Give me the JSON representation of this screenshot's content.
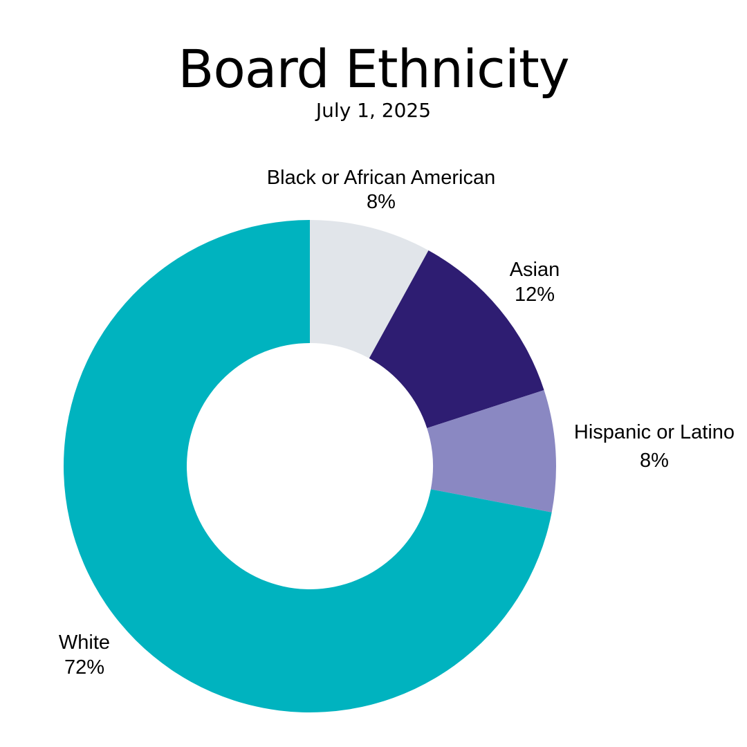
{
  "title": "Board Ethnicity",
  "subtitle": "July 1, 2025",
  "chart_data": {
    "type": "pie",
    "title": "Board Ethnicity",
    "subtitle": "July 1, 2025",
    "donut": true,
    "start_angle": "top",
    "direction": "clockwise",
    "slices": [
      {
        "label": "Black or African American",
        "value": 8,
        "display": "8%",
        "color": "#e1e5ea"
      },
      {
        "label": "Asian",
        "value": 12,
        "display": "12%",
        "color": "#2e1d72"
      },
      {
        "label": "Hispanic or Latino",
        "value": 8,
        "display": "8%",
        "color": "#8a88c2"
      },
      {
        "label": "White",
        "value": 72,
        "display": "72%",
        "color": "#00b3bf"
      }
    ]
  }
}
